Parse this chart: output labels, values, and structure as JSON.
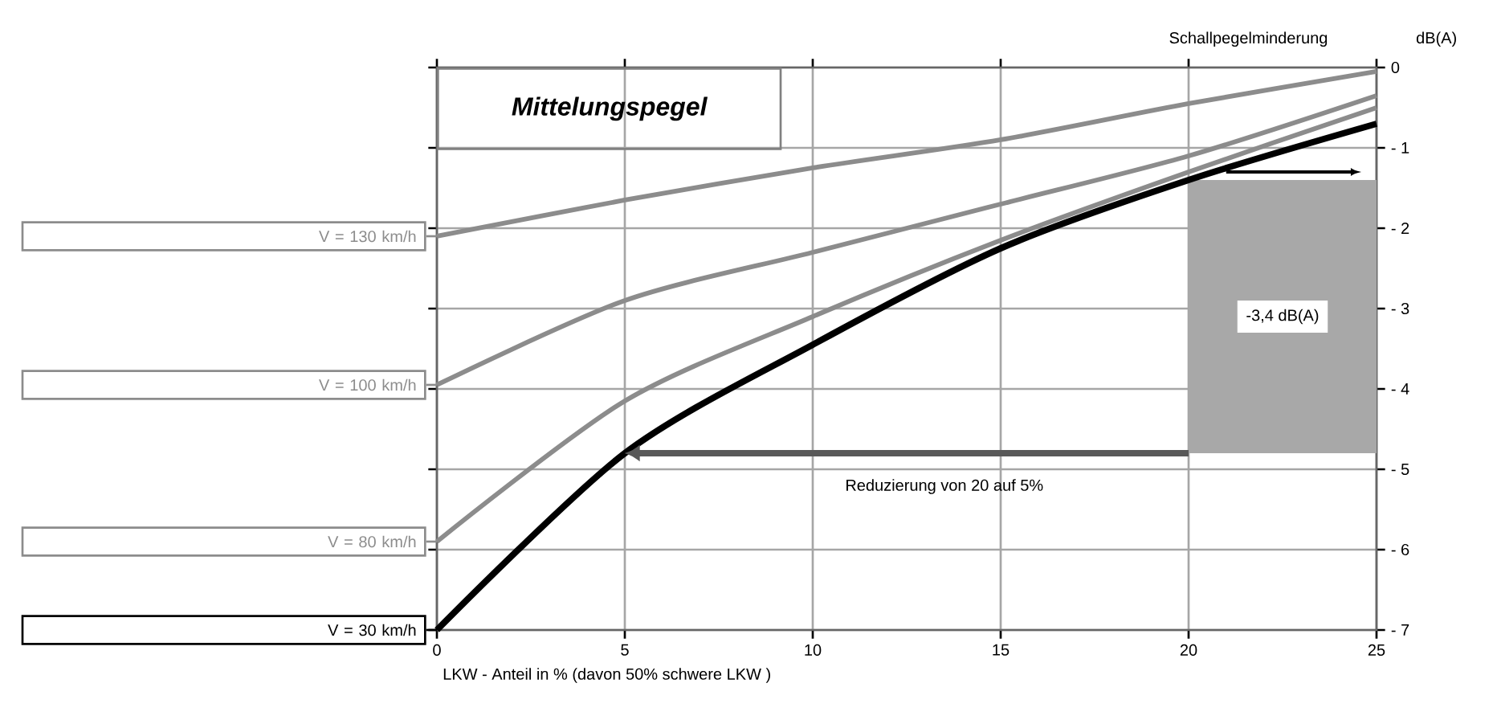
{
  "chart_data": {
    "type": "line",
    "title": "Mittelungspegel",
    "xlabel": "LKW - Anteil in % (davon 50% schwere LKW )",
    "ylabel": "Schallpegelminderung",
    "x": [
      0,
      5,
      10,
      15,
      20,
      25
    ],
    "series": [
      {
        "name": "V = 130 km/h",
        "color": "#8c8c8c",
        "values": [
          -2.1,
          -1.65,
          -1.25,
          -0.9,
          -0.45,
          -0.05
        ]
      },
      {
        "name": "V = 100 km/h",
        "color": "#8c8c8c",
        "values": [
          -3.95,
          -2.9,
          -2.3,
          -1.7,
          -1.1,
          -0.35
        ]
      },
      {
        "name": "V = 80 km/h",
        "color": "#8c8c8c",
        "values": [
          -5.9,
          -4.15,
          -3.1,
          -2.15,
          -1.3,
          -0.5
        ]
      },
      {
        "name": "V = 30 km/h",
        "color": "#000000",
        "values": [
          -7,
          -4.8,
          -3.45,
          -2.25,
          -1.4,
          -0.7
        ]
      }
    ],
    "xlim": [
      0,
      25
    ],
    "ylim": [
      -7,
      0
    ],
    "xticks": [
      0,
      5,
      10,
      15,
      20,
      25
    ],
    "yticks": [
      0,
      {
        "value": -1,
        "label": "- 1"
      },
      {
        "value": -2,
        "label": "- 2"
      },
      {
        "value": -3,
        "label": "- 3"
      },
      {
        "value": -4,
        "label": "- 4"
      },
      {
        "value": -5,
        "label": "- 5"
      },
      {
        "value": -6,
        "label": "- 6"
      },
      {
        "value": -7,
        "label": "- 7"
      }
    ],
    "grid": true,
    "legend": "left",
    "bands": [
      {
        "axis": "y",
        "from": -4.8,
        "to": -1.4,
        "color": "#a8a8a8",
        "label": "-3,4 dB(A)"
      }
    ],
    "annotations": [
      "dB(A)",
      "Reduzierung von 20 auf 5%"
    ]
  }
}
